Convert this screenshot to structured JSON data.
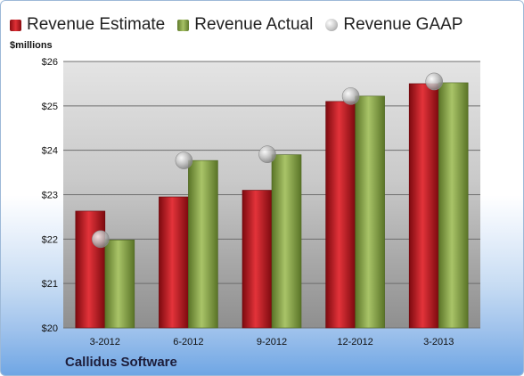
{
  "legend": {
    "estimate": "Revenue Estimate",
    "actual": "Revenue Actual",
    "gaap": "Revenue GAAP"
  },
  "company": "Callidus Software",
  "chart_data": {
    "type": "bar",
    "title": "",
    "xlabel": "",
    "ylabel": "$millions",
    "categories": [
      "3-2012",
      "6-2012",
      "9-2012",
      "12-2012",
      "3-2013"
    ],
    "series": [
      {
        "name": "Revenue Estimate",
        "values": [
          22.63,
          22.95,
          23.1,
          25.1,
          25.5
        ],
        "color": "#c8161d"
      },
      {
        "name": "Revenue Actual",
        "values": [
          21.98,
          23.77,
          23.9,
          25.22,
          25.52
        ],
        "color": "#8fac4f"
      },
      {
        "name": "Revenue GAAP",
        "kind": "marker",
        "values": [
          22.0,
          23.77,
          23.91,
          25.22,
          25.55
        ],
        "color": "#b8b8b8"
      }
    ],
    "ylim": [
      20,
      26
    ],
    "yticks": [
      "$20",
      "$21",
      "$22",
      "$23",
      "$24",
      "$25",
      "$26"
    ],
    "grid": true,
    "legend_position": "top"
  }
}
